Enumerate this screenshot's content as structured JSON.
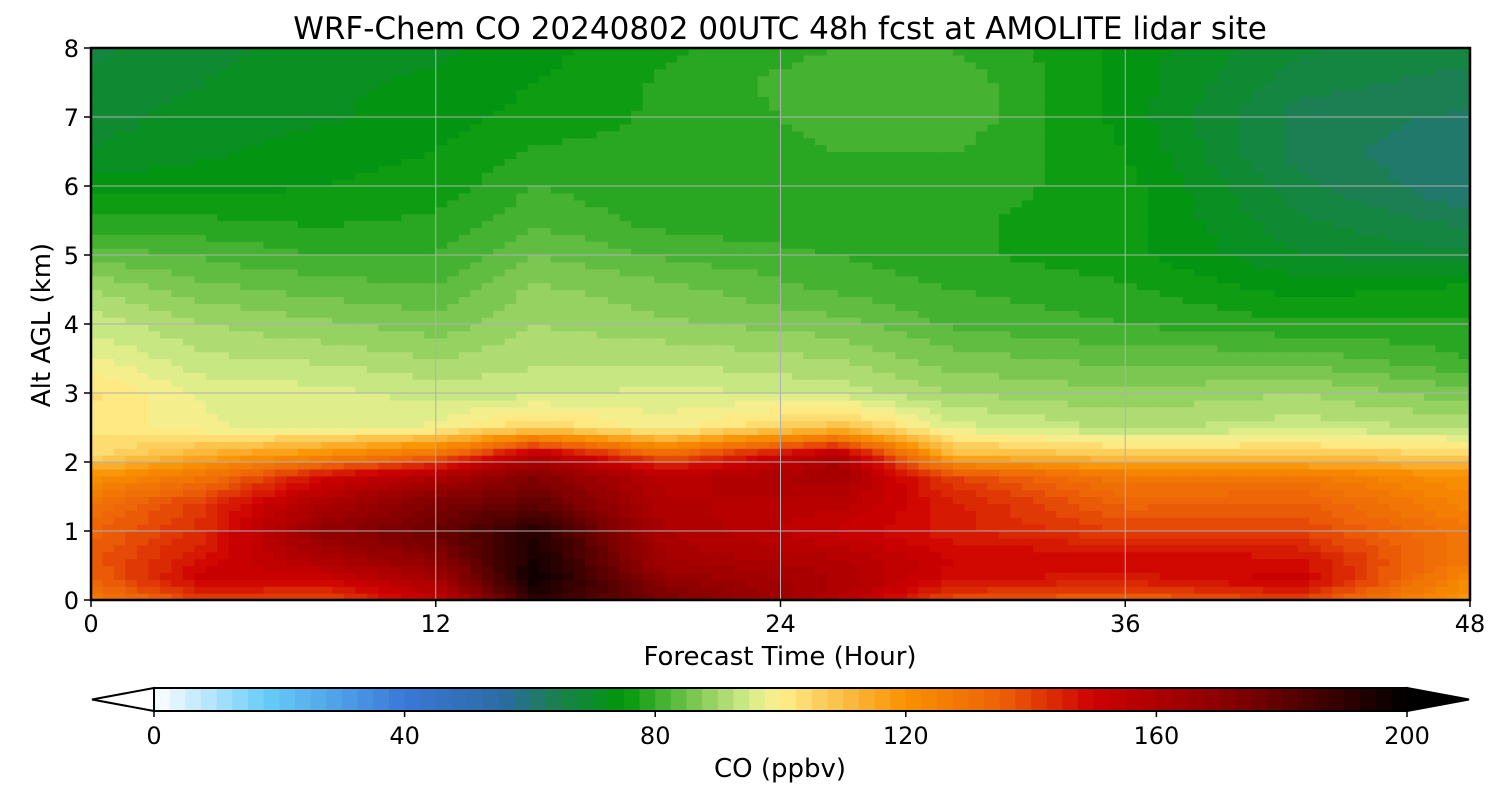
{
  "chart_data": {
    "type": "heatmap",
    "title": "WRF-Chem CO  20240802 00UTC 48h fcst at AMOLITE lidar site",
    "xlabel": "Forecast Time (Hour)",
    "ylabel": "Alt AGL (km)",
    "xlim": [
      0,
      48
    ],
    "ylim": [
      0,
      8
    ],
    "xticks": [
      0,
      12,
      24,
      36,
      48
    ],
    "yticks": [
      0,
      1,
      2,
      3,
      4,
      5,
      6,
      7,
      8
    ],
    "grid": true,
    "x": [
      0,
      4,
      8,
      12,
      15.5,
      20,
      26,
      30,
      36,
      42,
      48
    ],
    "y": [
      0,
      0.3,
      0.6,
      1.0,
      1.4,
      1.8,
      2.1,
      2.5,
      3.0,
      3.5,
      4.0,
      4.5,
      5.0,
      5.5,
      6.0,
      6.5,
      7.0,
      7.5,
      8.0
    ],
    "z": [
      [
        128,
        140,
        138,
        152,
        190,
        175,
        158,
        138,
        134,
        140,
        118
      ],
      [
        134,
        152,
        150,
        162,
        198,
        168,
        160,
        148,
        146,
        152,
        122
      ],
      [
        136,
        148,
        160,
        170,
        196,
        162,
        158,
        150,
        150,
        148,
        128
      ],
      [
        134,
        144,
        168,
        178,
        192,
        160,
        152,
        146,
        140,
        140,
        128
      ],
      [
        130,
        142,
        160,
        174,
        180,
        158,
        156,
        146,
        134,
        136,
        124
      ],
      [
        120,
        130,
        148,
        160,
        172,
        156,
        162,
        140,
        128,
        128,
        120
      ],
      [
        104,
        114,
        122,
        132,
        158,
        134,
        160,
        112,
        108,
        108,
        106
      ],
      [
        102,
        98,
        96,
        98,
        106,
        98,
        110,
        96,
        92,
        94,
        92
      ],
      [
        103,
        97,
        96,
        94,
        94,
        96,
        94,
        90,
        88,
        90,
        86
      ],
      [
        98,
        93,
        92,
        90,
        92,
        92,
        90,
        86,
        84,
        84,
        80
      ],
      [
        94,
        90,
        88,
        86,
        90,
        88,
        86,
        82,
        80,
        78,
        78
      ],
      [
        90,
        86,
        84,
        83,
        88,
        86,
        82,
        80,
        78,
        74,
        76
      ],
      [
        84,
        82,
        80,
        80,
        85,
        82,
        80,
        78,
        76,
        70,
        68
      ],
      [
        78,
        78,
        77,
        78,
        82,
        79,
        78,
        78,
        76,
        68,
        64
      ],
      [
        74,
        74,
        75,
        76,
        80,
        78,
        79,
        79,
        76,
        66,
        60
      ],
      [
        70,
        72,
        74,
        75,
        78,
        78,
        80,
        80,
        75,
        64,
        60
      ],
      [
        69,
        71,
        72,
        74,
        76,
        78,
        81,
        82,
        74,
        64,
        62
      ],
      [
        68,
        70,
        72,
        73,
        75,
        78,
        82,
        82,
        74,
        66,
        64
      ],
      [
        67,
        69,
        71,
        72,
        74,
        77,
        80,
        80,
        74,
        68,
        66
      ]
    ],
    "colorbar": {
      "label": "CO  (ppbv)",
      "range": [
        0,
        200
      ],
      "ticks": [
        0,
        40,
        80,
        120,
        160,
        200
      ],
      "levels": 80,
      "extend": "both",
      "orientation": "horizontal",
      "colormap": [
        {
          "v": 0,
          "c": "#ffffff"
        },
        {
          "v": 18,
          "c": "#66ccf8"
        },
        {
          "v": 40,
          "c": "#3a78d8"
        },
        {
          "v": 56,
          "c": "#2c6ba0"
        },
        {
          "v": 64,
          "c": "#1b8050"
        },
        {
          "v": 75,
          "c": "#00960a"
        },
        {
          "v": 85,
          "c": "#6fc24a"
        },
        {
          "v": 95,
          "c": "#d4ec8a"
        },
        {
          "v": 100,
          "c": "#fff08c"
        },
        {
          "v": 106,
          "c": "#fbd060"
        },
        {
          "v": 120,
          "c": "#f99100"
        },
        {
          "v": 135,
          "c": "#ed6208"
        },
        {
          "v": 150,
          "c": "#cd0000"
        },
        {
          "v": 172,
          "c": "#850000"
        },
        {
          "v": 200,
          "c": "#000000"
        }
      ]
    }
  }
}
